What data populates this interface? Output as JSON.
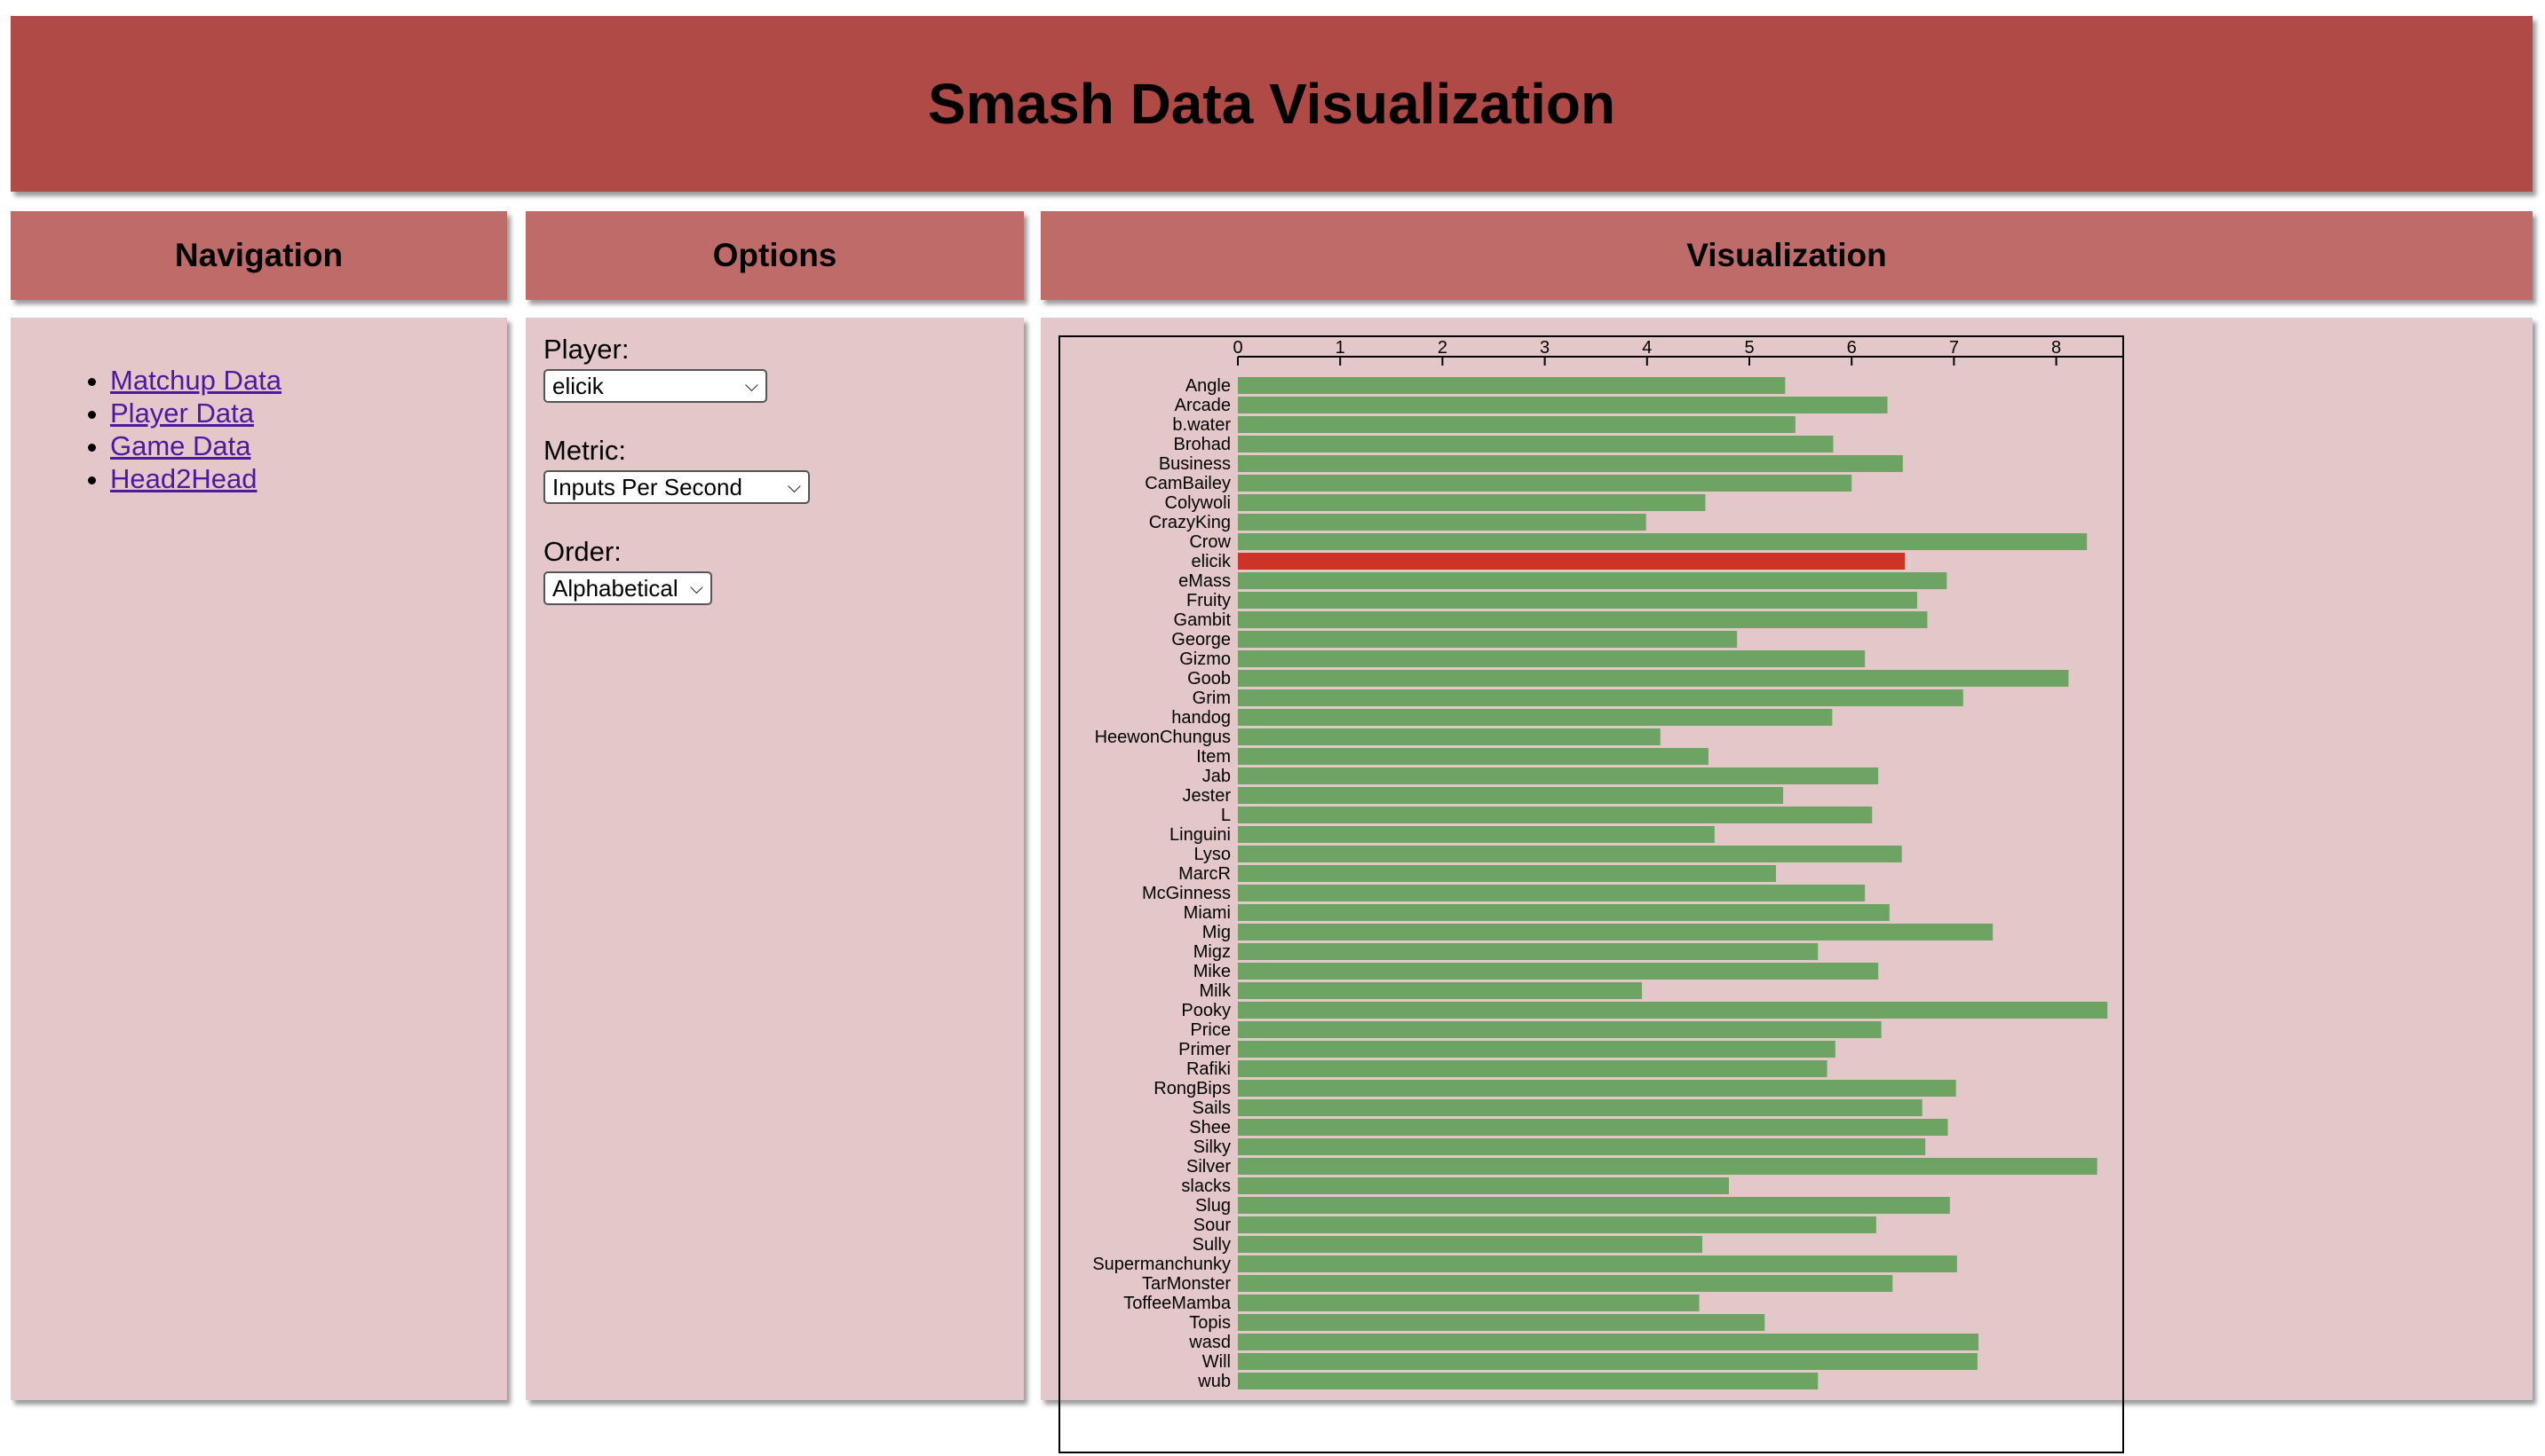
{
  "header": {
    "title": "Smash Data Visualization"
  },
  "panels": {
    "navigation": "Navigation",
    "options": "Options",
    "visualization": "Visualization"
  },
  "nav": {
    "items": [
      {
        "label": "Matchup Data"
      },
      {
        "label": "Player Data"
      },
      {
        "label": "Game Data"
      },
      {
        "label": "Head2Head"
      }
    ]
  },
  "options": {
    "player": {
      "label": "Player:",
      "value": "elicik"
    },
    "metric": {
      "label": "Metric:",
      "value": "Inputs Per Second"
    },
    "order": {
      "label": "Order:",
      "value": "Alphabetical"
    }
  },
  "colors": {
    "bar": "#6da463",
    "highlight": "#cd3327"
  },
  "chart_data": {
    "type": "bar",
    "orientation": "horizontal",
    "highlight": "elicik",
    "xlim": [
      0,
      8.7
    ],
    "xticks": [
      0,
      1,
      2,
      3,
      4,
      5,
      6,
      7,
      8
    ],
    "categories": [
      "Angle",
      "Arcade",
      "b.water",
      "Brohad",
      "Business",
      "CamBailey",
      "Colywoli",
      "CrazyKing",
      "Crow",
      "elicik",
      "eMass",
      "Fruity",
      "Gambit",
      "George",
      "Gizmo",
      "Goob",
      "Grim",
      "handog",
      "HeewonChungus",
      "Item",
      "Jab",
      "Jester",
      "L",
      "Linguini",
      "Lyso",
      "MarcR",
      "McGinness",
      "Miami",
      "Mig",
      "Migz",
      "Mike",
      "Milk",
      "Pooky",
      "Price",
      "Primer",
      "Rafiki",
      "RongBips",
      "Sails",
      "Shee",
      "Silky",
      "Silver",
      "slacks",
      "Slug",
      "Sour",
      "Sully",
      "Supermanchunky",
      "TarMonster",
      "ToffeeMamba",
      "Topis",
      "wasd",
      "Will",
      "wub"
    ],
    "values": [
      5.35,
      6.35,
      5.45,
      5.82,
      6.5,
      6.0,
      4.57,
      3.99,
      8.3,
      6.52,
      6.93,
      6.64,
      6.74,
      4.88,
      6.13,
      8.12,
      7.09,
      5.81,
      4.13,
      4.6,
      6.26,
      5.33,
      6.2,
      4.66,
      6.49,
      5.26,
      6.13,
      6.37,
      7.38,
      5.67,
      6.26,
      3.95,
      8.5,
      6.29,
      5.84,
      5.76,
      7.02,
      6.69,
      6.94,
      6.72,
      8.4,
      4.8,
      6.96,
      6.24,
      4.54,
      7.03,
      6.4,
      4.51,
      5.15,
      7.24,
      7.23,
      5.67
    ]
  }
}
